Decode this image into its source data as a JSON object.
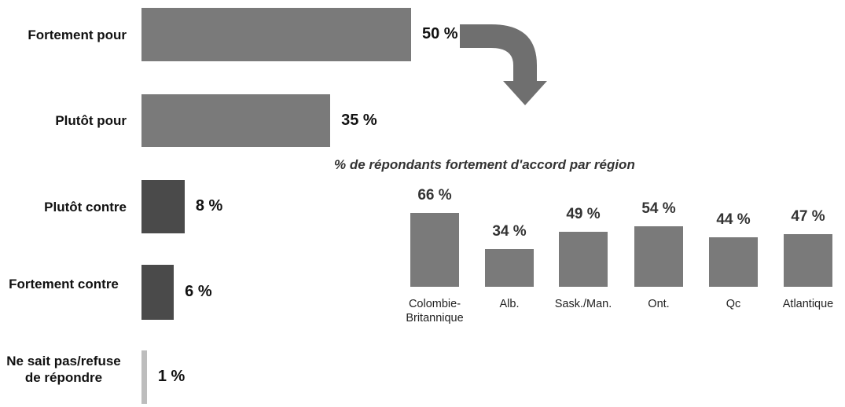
{
  "chart_data": [
    {
      "type": "bar",
      "orientation": "horizontal",
      "categories": [
        "Fortement pour",
        "Plutôt pour",
        "Plutôt contre",
        "Fortement contre",
        "Ne sait pas/refuse de répondre"
      ],
      "values": [
        50,
        35,
        8,
        6,
        1
      ],
      "value_labels": [
        "50 %",
        "35 %",
        "8 %",
        "6 %",
        "1 %"
      ],
      "colors": [
        "#7a7a7a",
        "#7a7a7a",
        "#4a4a4a",
        "#4a4a4a",
        "#bdbdbd"
      ]
    },
    {
      "type": "bar",
      "title": "% de répondants fortement d'accord par région",
      "categories": [
        "Colombie-Britannique",
        "Alb.",
        "Sask./Man.",
        "Ont.",
        "Qc",
        "Atlantique"
      ],
      "values": [
        66,
        34,
        49,
        54,
        44,
        47
      ],
      "value_labels": [
        "66 %",
        "34 %",
        "49 %",
        "54 %",
        "44 %",
        "47 %"
      ],
      "color": "#7a7a7a"
    }
  ]
}
